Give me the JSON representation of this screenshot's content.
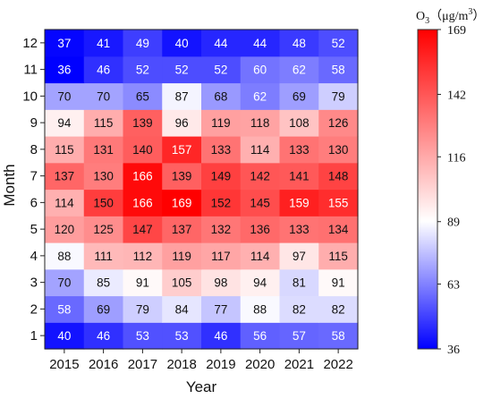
{
  "chart_data": {
    "type": "heatmap",
    "title": "",
    "xlabel": "Year",
    "ylabel": "Month",
    "x": [
      "2015",
      "2016",
      "2017",
      "2018",
      "2019",
      "2020",
      "2021",
      "2022"
    ],
    "y": [
      "1",
      "2",
      "3",
      "4",
      "5",
      "6",
      "7",
      "8",
      "9",
      "10",
      "11",
      "12"
    ],
    "values": [
      [
        40,
        46,
        53,
        53,
        46,
        56,
        57,
        58
      ],
      [
        58,
        69,
        79,
        84,
        77,
        88,
        82,
        82
      ],
      [
        70,
        85,
        91,
        105,
        98,
        94,
        81,
        91
      ],
      [
        88,
        111,
        112,
        119,
        117,
        114,
        97,
        115
      ],
      [
        120,
        125,
        147,
        137,
        132,
        136,
        133,
        134
      ],
      [
        114,
        150,
        166,
        169,
        152,
        145,
        159,
        155
      ],
      [
        137,
        130,
        166,
        139,
        149,
        142,
        141,
        148
      ],
      [
        115,
        131,
        140,
        157,
        133,
        114,
        133,
        130
      ],
      [
        94,
        115,
        139,
        96,
        119,
        118,
        108,
        126
      ],
      [
        70,
        70,
        65,
        87,
        68,
        62,
        69,
        79
      ],
      [
        36,
        46,
        52,
        52,
        52,
        60,
        62,
        58
      ],
      [
        37,
        41,
        49,
        40,
        44,
        44,
        48,
        52
      ]
    ],
    "colorbar": {
      "min": 36,
      "max": 169,
      "ticks": [
        "36",
        "63",
        "89",
        "116",
        "142",
        "169"
      ],
      "label_base": "O",
      "label_sub": "3",
      "label_mid": "（μg/m",
      "label_sup": "3",
      "label_end": "）",
      "colors": {
        "low": "#0000ff",
        "mid": "#ffffff",
        "high": "#ff0000"
      }
    },
    "grid": false,
    "legend": "right"
  }
}
